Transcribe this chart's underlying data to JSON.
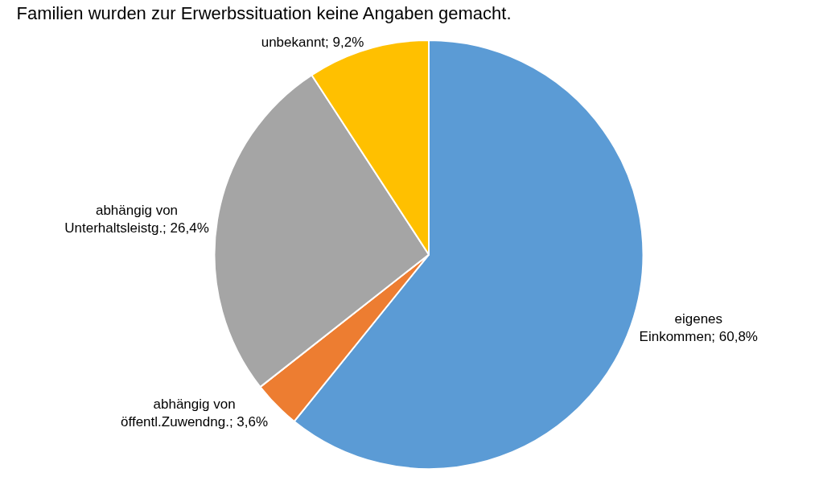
{
  "chart_data": {
    "type": "pie",
    "title": "Familien wurden zur Erwerbssituation keine Angaben gemacht.",
    "categories": [
      "eigenes\nEinkommen",
      "abhängig von\nöffentl.Zuwendng.",
      "abhängig von\nUnterhaltsleistg.",
      "unbekannt"
    ],
    "values": [
      60.8,
      3.6,
      26.4,
      9.2
    ],
    "colors": [
      "#5b9bd5",
      "#ed7d31",
      "#a5a5a5",
      "#ffc000"
    ],
    "value_labels": [
      "60,8%",
      "3,6%",
      "26,4%",
      "9,2%"
    ],
    "legend": false
  }
}
